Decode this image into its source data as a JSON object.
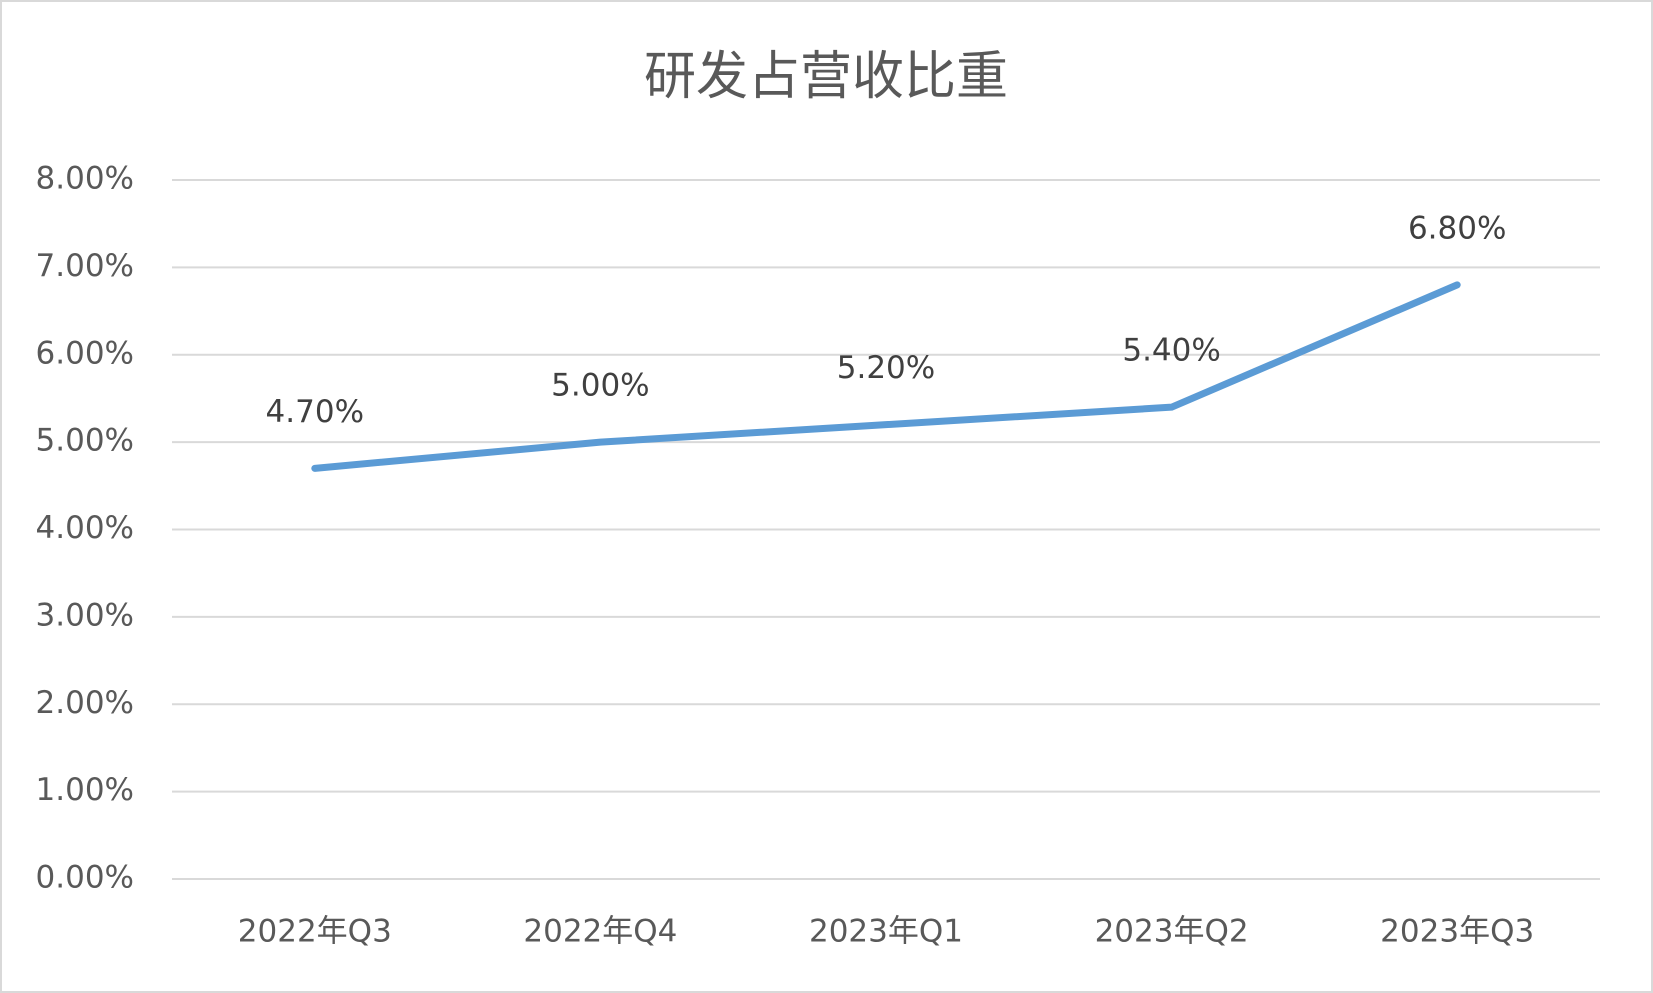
{
  "chart_data": {
    "type": "line",
    "title": "研发占营收比重",
    "categories": [
      "2022年Q3",
      "2022年Q4",
      "2023年Q1",
      "2023年Q2",
      "2023年Q3"
    ],
    "values": [
      4.7,
      5.0,
      5.2,
      5.4,
      6.8
    ],
    "value_labels": [
      "4.70%",
      "5.00%",
      "5.20%",
      "5.40%",
      "6.80%"
    ],
    "color": "#5b9bd5",
    "ylim": [
      0,
      8
    ],
    "yticks": [
      {
        "value": 0,
        "label": "0.00%"
      },
      {
        "value": 1,
        "label": "1.00%"
      },
      {
        "value": 2,
        "label": "2.00%"
      },
      {
        "value": 3,
        "label": "3.00%"
      },
      {
        "value": 4,
        "label": "4.00%"
      },
      {
        "value": 5,
        "label": "5.00%"
      },
      {
        "value": 6,
        "label": "6.00%"
      },
      {
        "value": 7,
        "label": "7.00%"
      },
      {
        "value": 8,
        "label": "8.00%"
      }
    ],
    "grid": true
  }
}
